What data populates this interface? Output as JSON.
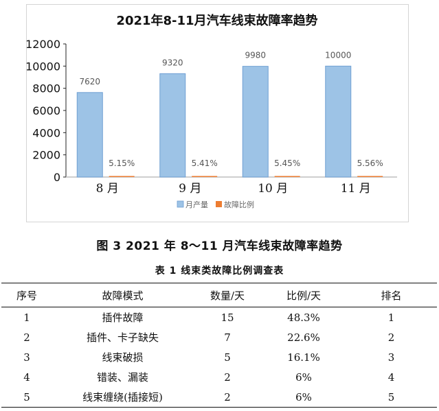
{
  "chart_data": {
    "type": "bar",
    "title": "2021年8-11月汽车线束故障率趋势",
    "categories": [
      "8 月",
      "9 月",
      "10 月",
      "11 月"
    ],
    "series": [
      {
        "name": "月产量",
        "values": [
          7620,
          9320,
          9980,
          10000
        ],
        "labels": [
          "7620",
          "9320",
          "9980",
          "10000"
        ],
        "color": "#9dc3e6"
      },
      {
        "name": "故障比例",
        "values": [
          5.15,
          5.41,
          5.45,
          5.56
        ],
        "labels": [
          "5.15%",
          "5.41%",
          "5.45%",
          "5.56%"
        ],
        "color": "#ed7d31"
      }
    ],
    "ylim": [
      0,
      12000
    ],
    "yticks": [
      0,
      2000,
      4000,
      6000,
      8000,
      10000,
      12000
    ],
    "xlabel": "",
    "ylabel": "",
    "grid": false,
    "legend": "bottom"
  },
  "figure_caption": "图 3   2021 年 8～11 月汽车线束故障率趋势",
  "table": {
    "caption": "表 1   线束类故障比例调查表",
    "headers": [
      "序号",
      "故障模式",
      "数量/天",
      "比例/天",
      "排名"
    ],
    "rows": [
      [
        "1",
        "插件故障",
        "15",
        "48.3%",
        "1"
      ],
      [
        "2",
        "插件、卡子缺失",
        "7",
        "22.6%",
        "2"
      ],
      [
        "3",
        "线束破损",
        "5",
        "16.1%",
        "3"
      ],
      [
        "4",
        "错装、漏装",
        "2",
        "6%",
        "4"
      ],
      [
        "5",
        "线束缠绕(插接短)",
        "2",
        "6%",
        "5"
      ]
    ]
  }
}
